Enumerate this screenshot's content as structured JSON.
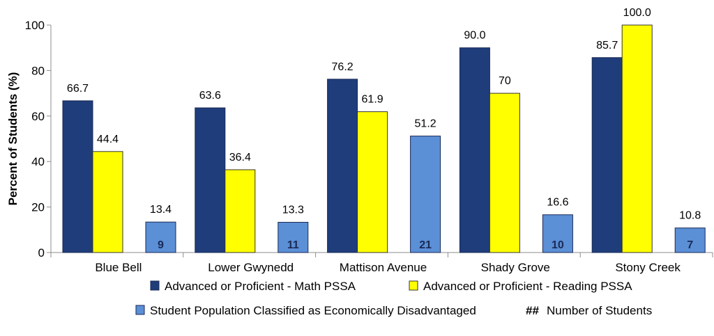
{
  "chart_data": {
    "type": "bar",
    "ylabel": "Percent of Students (%)",
    "ylim": [
      0,
      100
    ],
    "yticks": [
      0,
      20,
      40,
      60,
      80,
      100
    ],
    "grid": false,
    "legend_position": "bottom",
    "categories": [
      "Blue Bell",
      "Lower Gwynedd",
      "Mattison Avenue",
      "Shady Grove",
      "Stony Creek"
    ],
    "series": [
      {
        "name": "Advanced or Proficient - Math PSSA",
        "color": "#1f3d7a",
        "values": [
          66.7,
          63.6,
          76.2,
          90.0,
          85.7
        ],
        "labels": [
          "66.7",
          "63.6",
          "76.2",
          "90.0",
          "85.7"
        ]
      },
      {
        "name": "Advanced or Proficient - Reading PSSA",
        "color": "#ffff00",
        "values": [
          44.4,
          36.4,
          61.9,
          70,
          100.0
        ],
        "labels": [
          "44.4",
          "36.4",
          "61.9",
          "70",
          "100.0"
        ]
      },
      {
        "name": "Student Population Classified as Economically Disadvantaged",
        "color": "#5b8fd6",
        "values": [
          13.4,
          13.3,
          51.2,
          16.6,
          10.8
        ],
        "labels": [
          "13.4",
          "13.3",
          "51.2",
          "16.6",
          "10.8"
        ],
        "student_counts": [
          "9",
          "11",
          "21",
          "10",
          "7"
        ]
      }
    ],
    "legend_extra": {
      "symbol": "##",
      "text": "Number  of Students"
    }
  }
}
